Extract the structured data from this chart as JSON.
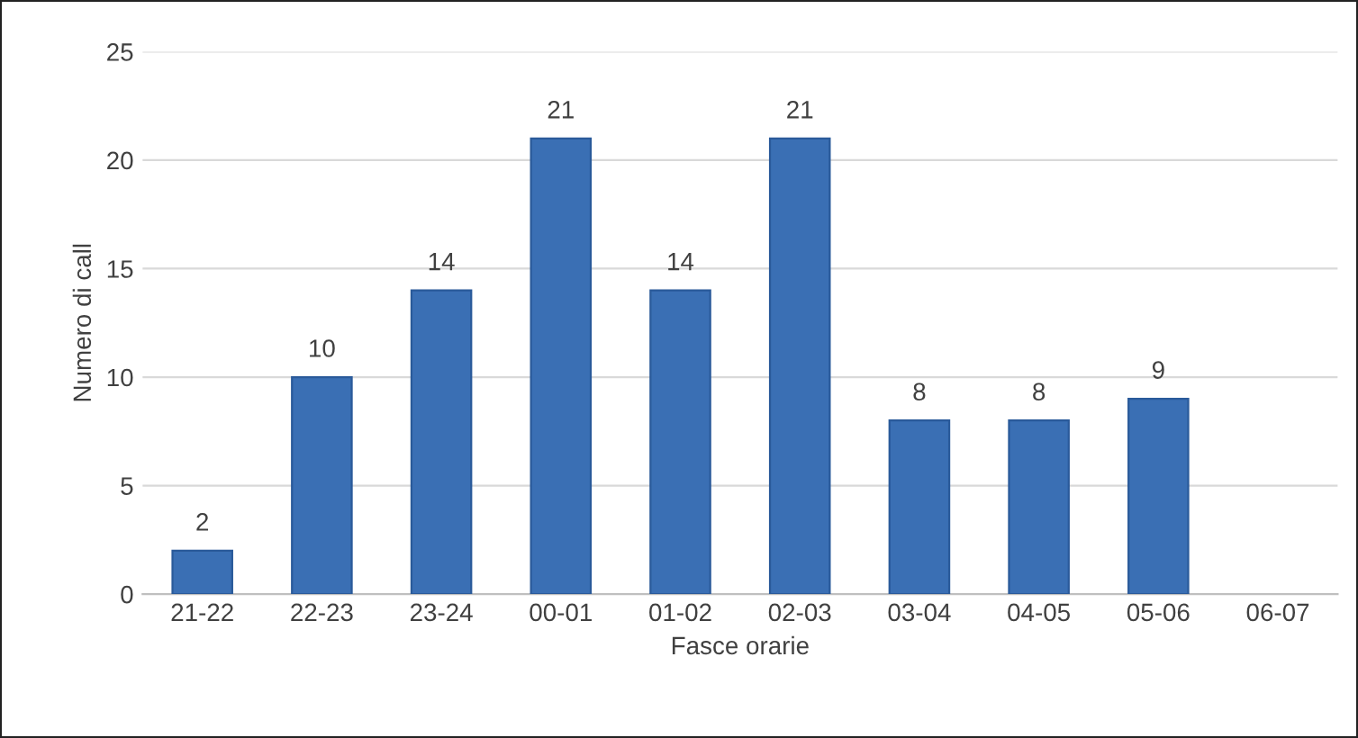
{
  "chart_data": {
    "type": "bar",
    "xlabel": "Fasce orarie",
    "ylabel": "Numero di call",
    "categories": [
      "21-22",
      "22-23",
      "23-24",
      "00-01",
      "01-02",
      "02-03",
      "03-04",
      "04-05",
      "05-06",
      "06-07"
    ],
    "values": [
      2,
      10,
      14,
      21,
      14,
      21,
      8,
      8,
      9,
      null
    ],
    "color": "#3a6fb4",
    "ylim": [
      0,
      25
    ],
    "yticks": [
      0,
      5,
      10,
      15,
      20,
      25
    ],
    "grid": "y",
    "data_labels": true
  }
}
